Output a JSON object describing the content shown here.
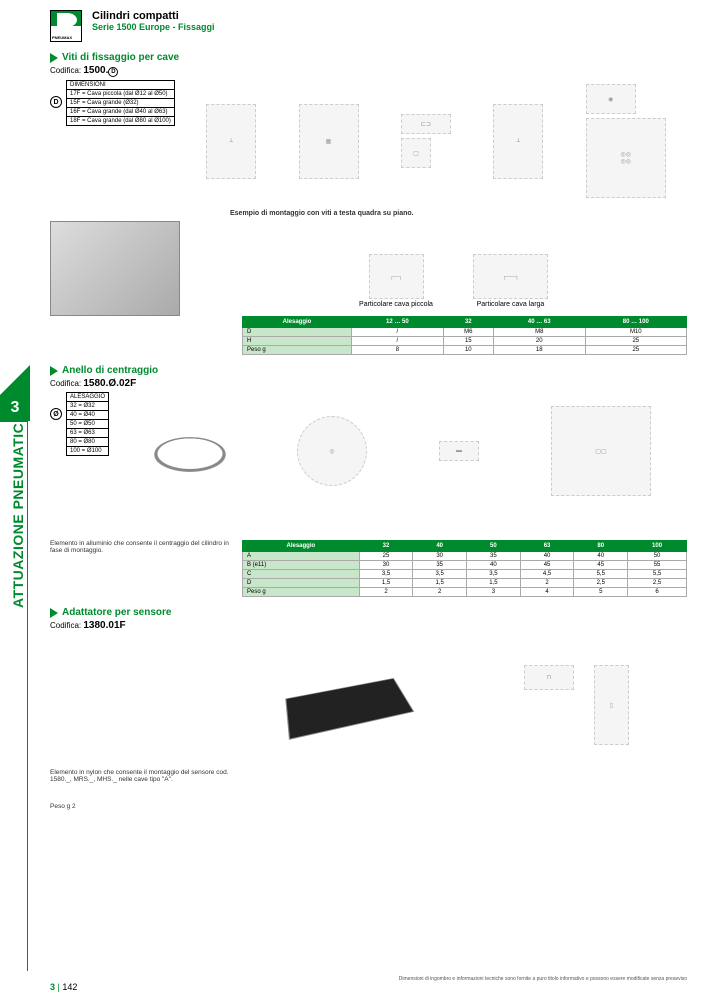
{
  "header": {
    "title": "Cilindri compatti",
    "subtitle": "Serie 1500 Europe - Fissaggi",
    "brand": "PNEUMAX"
  },
  "side": {
    "chapter": "3",
    "vertical": "ATTUAZIONE PNEUMATICA"
  },
  "s1": {
    "title": "Viti di fissaggio per cave",
    "codifica_label": "Codifica:",
    "codifica": "1500.",
    "cod_symbol": "D",
    "spec_header": "DIMENSIONI",
    "spec_rows": [
      "17F = Cava piccola (dal Ø12 al Ø50)",
      "15F = Cava grande (Ø32)",
      "16F = Cava grande (dal Ø40 al Ø63)",
      "18F = Cava grande (dal Ø80 al Ø100)"
    ],
    "mount_note": "Esempio di montaggio con viti a testa quadra su piano.",
    "cap1": "Particolare cava piccola",
    "cap2": "Particolare cava larga",
    "table": {
      "headers": [
        "Alesaggio",
        "12 … 50",
        "32",
        "40 … 63",
        "80 … 100"
      ],
      "rows": [
        [
          "D",
          "/",
          "M6",
          "M8",
          "M10"
        ],
        [
          "H",
          "/",
          "15",
          "20",
          "25"
        ],
        [
          "Peso g",
          "8",
          "10",
          "18",
          "25"
        ]
      ]
    }
  },
  "s2": {
    "title": "Anello di centraggio",
    "codifica_label": "Codifica:",
    "codifica": "1580.Ø.02F",
    "spec_header": "ALESAGGIO",
    "spec_symbol": "Ø",
    "spec_rows": [
      "32 = Ø32",
      "40 = Ø40",
      "50 = Ø50",
      "63 = Ø63",
      "80 = Ø80",
      "100 = Ø100"
    ],
    "note": "Elemento in alluminio che consente il centraggio del cilindro in fase di montaggio.",
    "table": {
      "headers": [
        "Alesaggio",
        "32",
        "40",
        "50",
        "63",
        "80",
        "100"
      ],
      "rows": [
        [
          "A",
          "25",
          "30",
          "35",
          "40",
          "40",
          "50"
        ],
        [
          "B (e11)",
          "30",
          "35",
          "40",
          "45",
          "45",
          "55"
        ],
        [
          "C",
          "3,5",
          "3,5",
          "3,5",
          "4,5",
          "5,5",
          "5,5"
        ],
        [
          "D",
          "1,5",
          "1,5",
          "1,5",
          "2",
          "2,5",
          "2,5"
        ],
        [
          "Peso g",
          "2",
          "2",
          "3",
          "4",
          "5",
          "6"
        ]
      ]
    }
  },
  "s3": {
    "title": "Adattatore per sensore",
    "codifica_label": "Codifica:",
    "codifica": "1380.01F",
    "note": "Elemento in nylon che consente il montaggio del sensore cod. 1580._, MRS._, MHS._ nelle cave tipo \"A\".",
    "weight": "Peso g 2"
  },
  "footer": {
    "disclaimer": "Dimensioni di ingombro e informazioni tecniche sono fornite a puro titolo informativo e possono essere modificate senza preavviso",
    "chapter": "3",
    "page": "142"
  },
  "colors": {
    "green": "#008a2e",
    "light_green": "#c8e6c9"
  }
}
